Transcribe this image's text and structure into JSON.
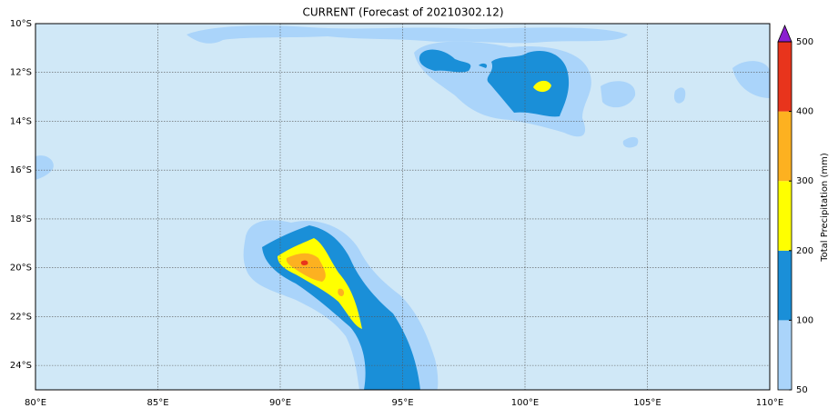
{
  "title": "CURRENT (Forecast of 20210302.12)",
  "map": {
    "xlim": [
      80,
      110
    ],
    "ylim": [
      -25,
      -10
    ],
    "xticks": [
      {
        "value": 80,
        "label": "80°E"
      },
      {
        "value": 85,
        "label": "85°E"
      },
      {
        "value": 90,
        "label": "90°E"
      },
      {
        "value": 95,
        "label": "95°E"
      },
      {
        "value": 100,
        "label": "100°E"
      },
      {
        "value": 105,
        "label": "105°E"
      },
      {
        "value": 110,
        "label": "110°E"
      }
    ],
    "yticks": [
      {
        "value": -10,
        "label": "10°S"
      },
      {
        "value": -12,
        "label": "12°S"
      },
      {
        "value": -14,
        "label": "14°S"
      },
      {
        "value": -16,
        "label": "16°S"
      },
      {
        "value": -18,
        "label": "18°S"
      },
      {
        "value": -20,
        "label": "20°S"
      },
      {
        "value": -22,
        "label": "22°S"
      },
      {
        "value": -24,
        "label": "24°S"
      }
    ],
    "grid": true
  },
  "colorbar": {
    "label": "Total Precipitation (mm)",
    "levels": [
      50,
      100,
      200,
      300,
      400,
      500
    ],
    "colors": [
      "#aad4fa",
      "#1a8fd8",
      "#ffff00",
      "#fdb120",
      "#e8341c"
    ],
    "over_color": "#8b1fd0"
  }
}
